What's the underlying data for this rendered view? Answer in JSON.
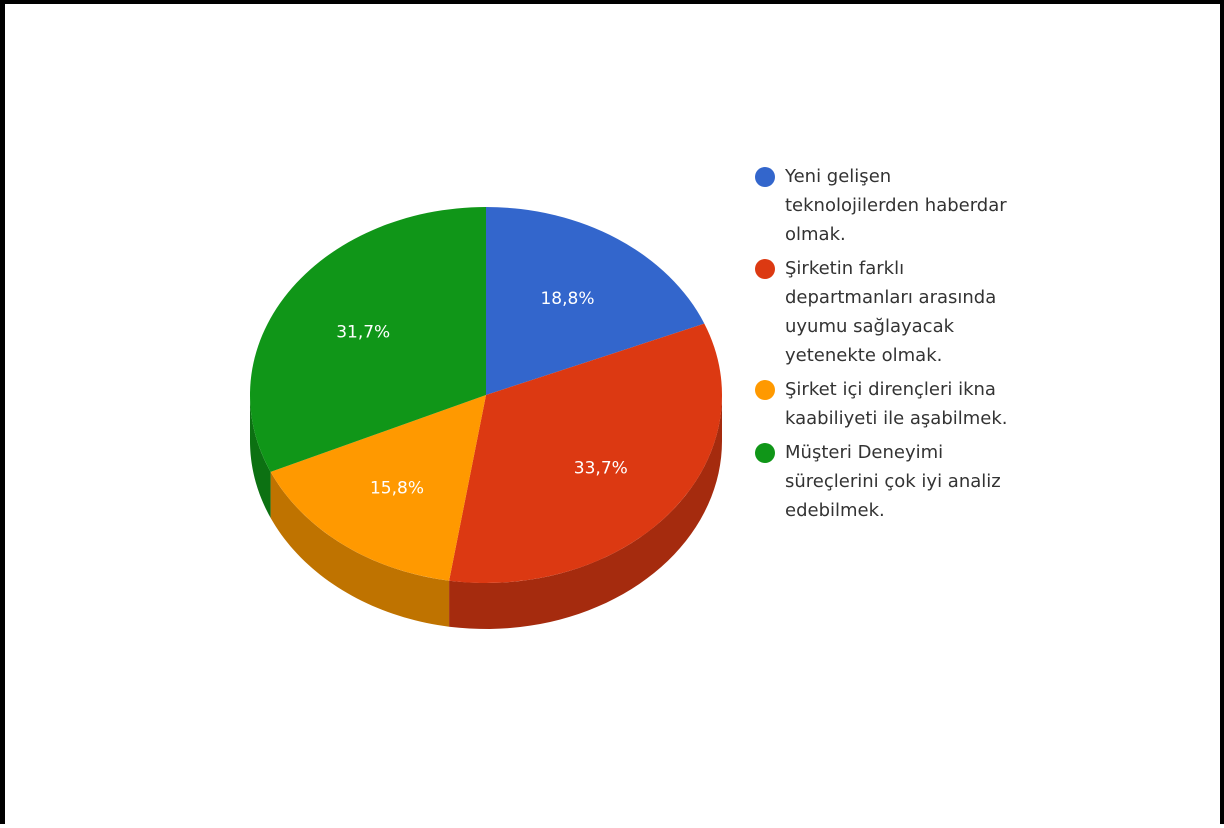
{
  "chart_data": {
    "type": "pie",
    "title": "",
    "style": "3d",
    "legend_position": "right",
    "slices": [
      {
        "label": "Yeni gelişen teknolojilerden haberdar olmak.",
        "value": 18.8,
        "value_label": "18,8%",
        "color": "#3366cc",
        "side_color": "#2a4f9a"
      },
      {
        "label": "Şirketin farklı departmanları arasında uyumu sağlayacak yetenekte olmak.",
        "value": 33.7,
        "value_label": "33,7%",
        "color": "#dc3912",
        "side_color": "#a52b0e"
      },
      {
        "label": "Şirket içi dirençleri ikna kaabiliyeti ile aşabilmek.",
        "value": 15.8,
        "value_label": "15,8%",
        "color": "#ff9900",
        "side_color": "#bf7300"
      },
      {
        "label": "Müşteri Deneyimi süreçlerini çok iyi analiz edebilmek.",
        "value": 31.7,
        "value_label": "31,7%",
        "color": "#109618",
        "side_color": "#0c7112"
      }
    ]
  }
}
